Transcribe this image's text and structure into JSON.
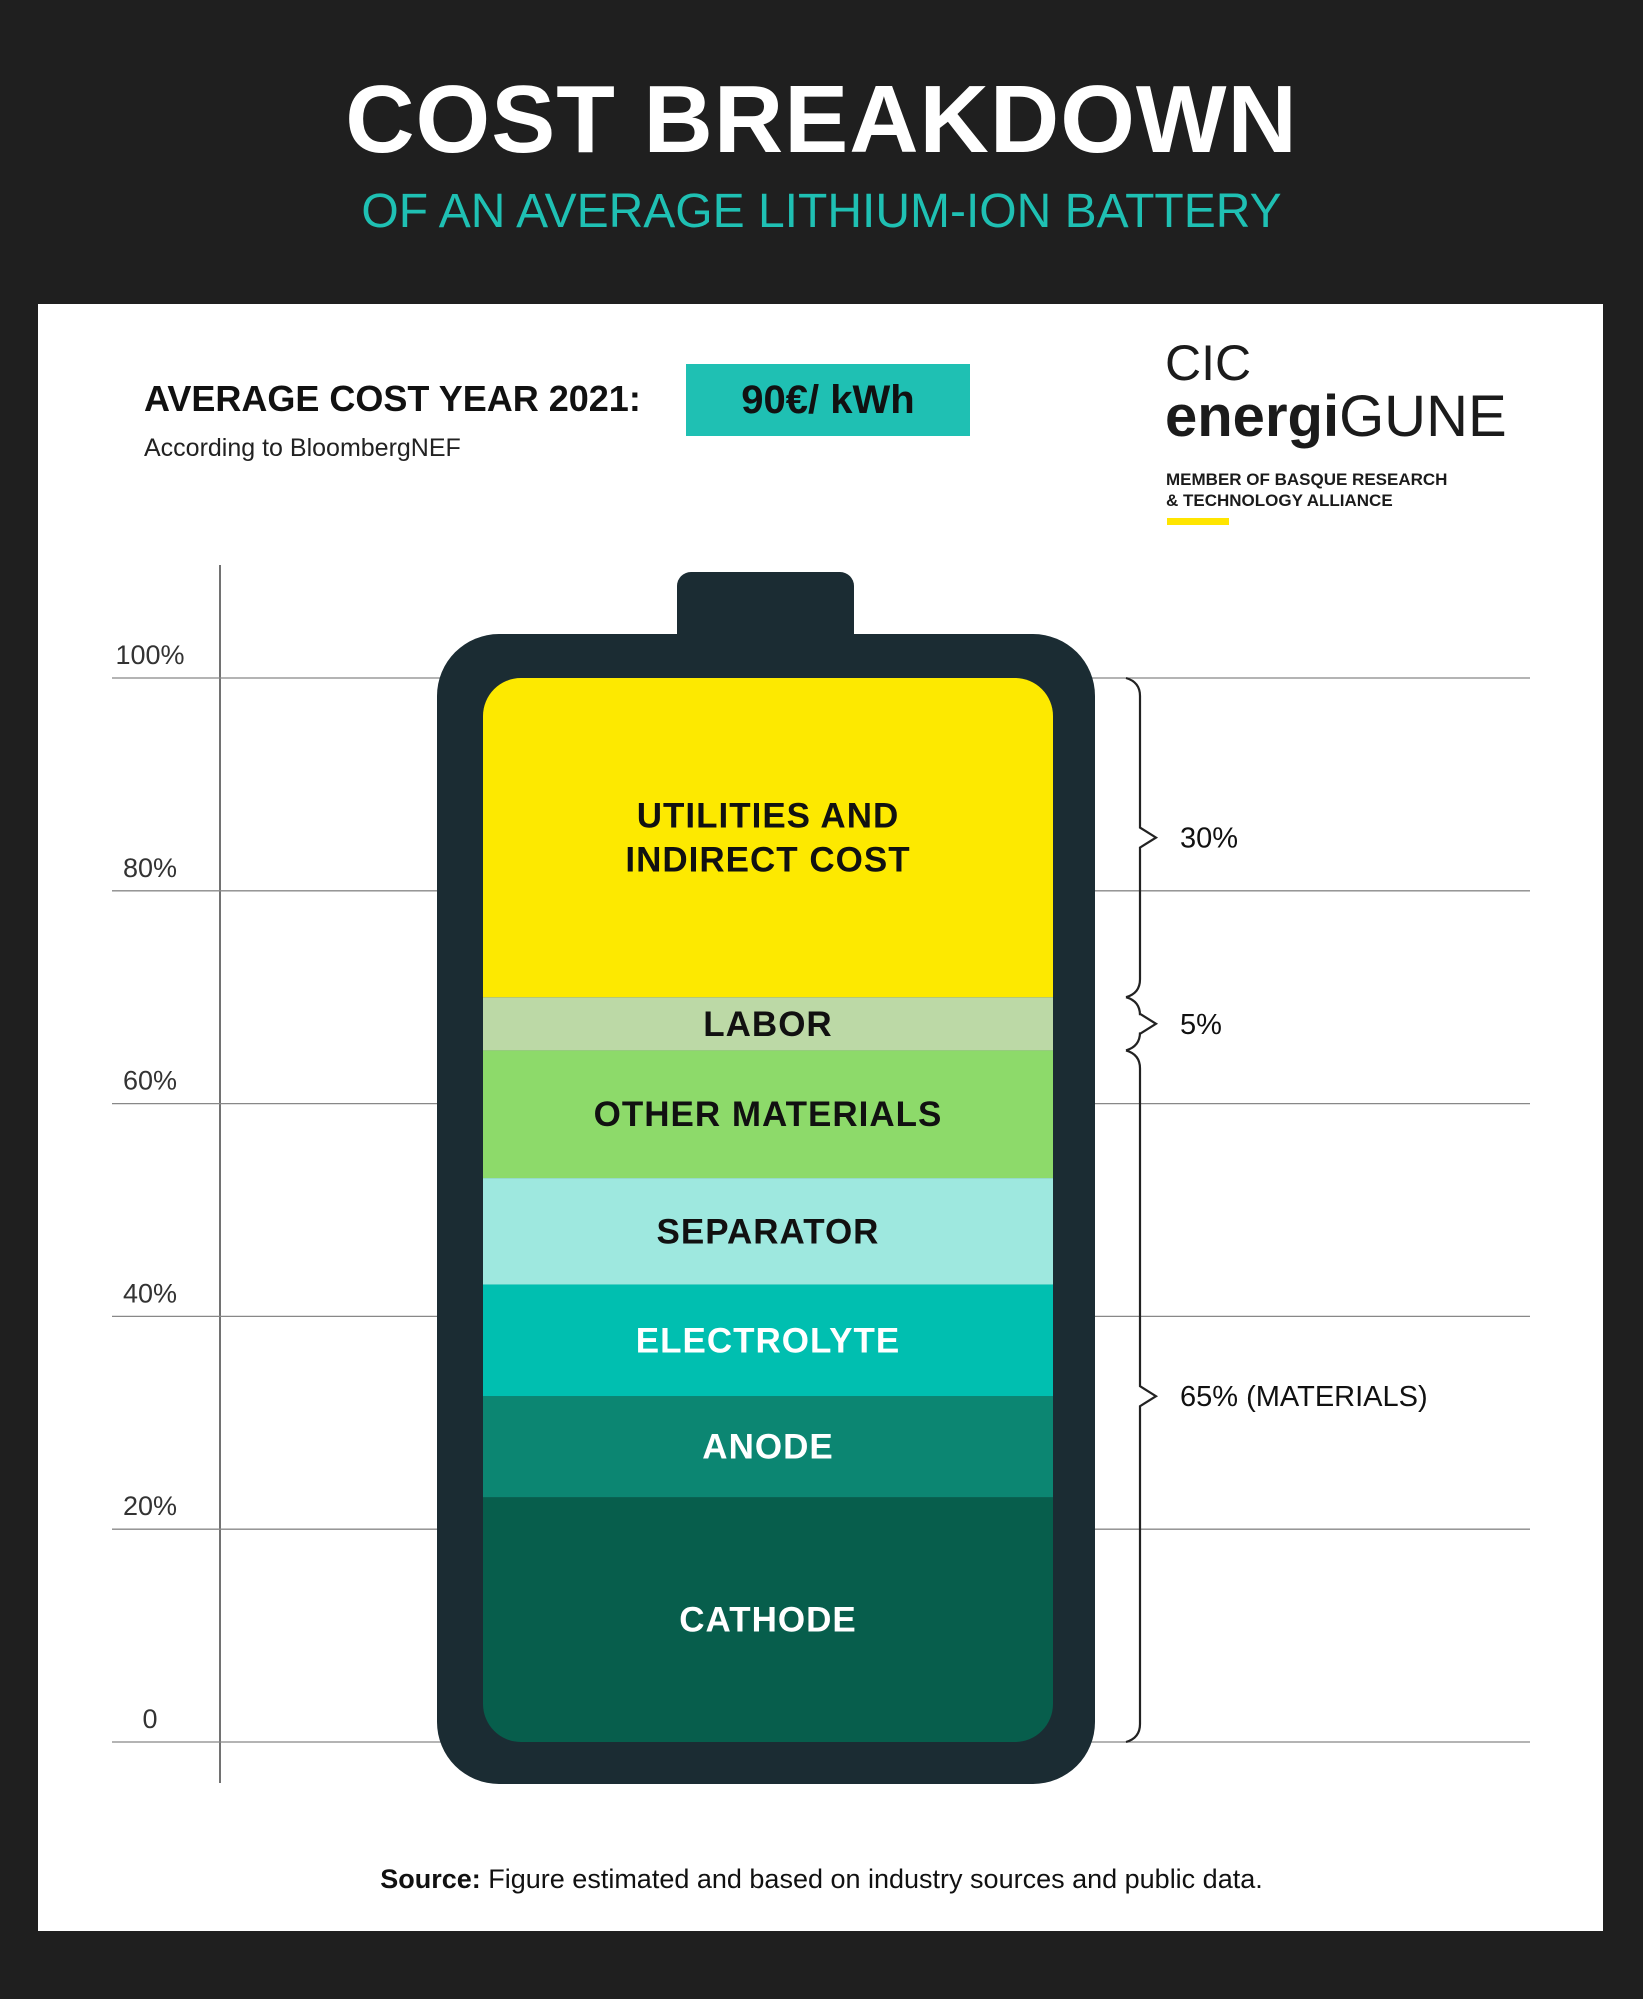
{
  "header": {
    "title": "COST BREAKDOWN",
    "subtitle": "OF AN AVERAGE LITHIUM-ION BATTERY"
  },
  "cost": {
    "label": "AVERAGE COST YEAR 2021:",
    "value": "90€/ kWh",
    "source": "According to BloombergNEF"
  },
  "logo": {
    "line1": "CIC",
    "brand_bold": "energi",
    "brand_light": "GUNE",
    "member_line1": "MEMBER OF BASQUE RESEARCH",
    "member_line2": "& TECHNOLOGY ALLIANCE"
  },
  "footer": {
    "source_label": "Source:",
    "source_text": " Figure estimated and based on industry sources and public data."
  },
  "chart_data": {
    "type": "bar",
    "subtype": "stacked-single",
    "ylim": [
      0,
      100
    ],
    "yticks": [
      "0",
      "20%",
      "40%",
      "60%",
      "80%",
      "100%"
    ],
    "grid": true,
    "segments": [
      {
        "name": "CATHODE",
        "start": 0,
        "end": 23,
        "color": "#075e4c",
        "text_color": "#ffffff"
      },
      {
        "name": "ANODE",
        "start": 23,
        "end": 32.5,
        "color": "#0c8672",
        "text_color": "#ffffff"
      },
      {
        "name": "ELECTROLYTE",
        "start": 32.5,
        "end": 43,
        "color": "#00bfb0",
        "text_color": "#ffffff"
      },
      {
        "name": "SEPARATOR",
        "start": 43,
        "end": 53,
        "color": "#9ee8df",
        "text_color": "#111111"
      },
      {
        "name": "OTHER MATERIALS",
        "start": 53,
        "end": 65,
        "color": "#8dda6a",
        "text_color": "#111111"
      },
      {
        "name": "LABOR",
        "start": 65,
        "end": 70,
        "color": "#bcd9a6",
        "text_color": "#111111"
      },
      {
        "name": "UTILITIES AND\nINDIRECT COST",
        "start": 70,
        "end": 100,
        "color": "#fde900",
        "text_color": "#111111"
      }
    ],
    "brackets": [
      {
        "label": "30%",
        "start": 70,
        "end": 100
      },
      {
        "label": "5%",
        "start": 65,
        "end": 70
      },
      {
        "label": "65% (MATERIALS)",
        "start": 0,
        "end": 65
      }
    ]
  }
}
